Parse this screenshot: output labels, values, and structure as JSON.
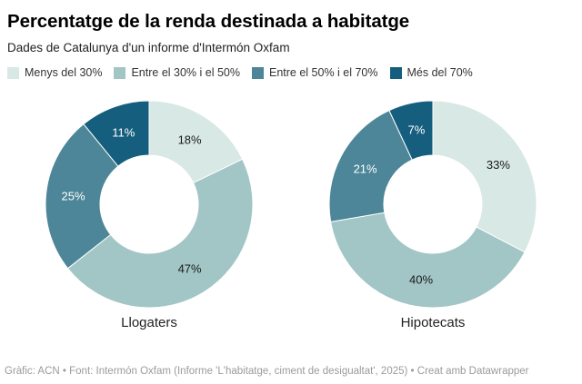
{
  "header": {
    "title": "Percentatge de la renda destinada a habitatge",
    "subtitle": "Dades de Catalunya d'un informe d'Intermón Oxfam"
  },
  "legend": {
    "items": [
      {
        "label": "Menys del 30%",
        "color": "#d7e8e5"
      },
      {
        "label": "Entre el 30% i el 50%",
        "color": "#a2c5c6"
      },
      {
        "label": "Entre el 50% i el 70%",
        "color": "#4d8698"
      },
      {
        "label": "Més del 70%",
        "color": "#155e7d"
      }
    ]
  },
  "chart_data": {
    "type": "pie",
    "variant": "donut",
    "start_angle": "top",
    "direction": "clockwise",
    "legend_position": "top",
    "categories": [
      "Menys del 30%",
      "Entre el 30% i el 50%",
      "Entre el 50% i el 70%",
      "Més del 70%"
    ],
    "colors": [
      "#d7e8e5",
      "#a2c5c6",
      "#4d8698",
      "#155e7d"
    ],
    "slice_label_colors": [
      "#1a1a1a",
      "#1a1a1a",
      "#ffffff",
      "#ffffff"
    ],
    "charts": [
      {
        "title": "Llogaters",
        "values": [
          18,
          47,
          25,
          11
        ],
        "labels": [
          "18%",
          "47%",
          "25%",
          "11%"
        ]
      },
      {
        "title": "Hipotecats",
        "values": [
          33,
          40,
          21,
          7
        ],
        "labels": [
          "33%",
          "40%",
          "21%",
          "7%"
        ]
      }
    ]
  },
  "footer": {
    "credit": "Gràfic: ACN • Font: Intermón Oxfam (Informe 'L'habitatge, ciment de desigualtat', 2025) • Creat amb Datawrapper"
  }
}
